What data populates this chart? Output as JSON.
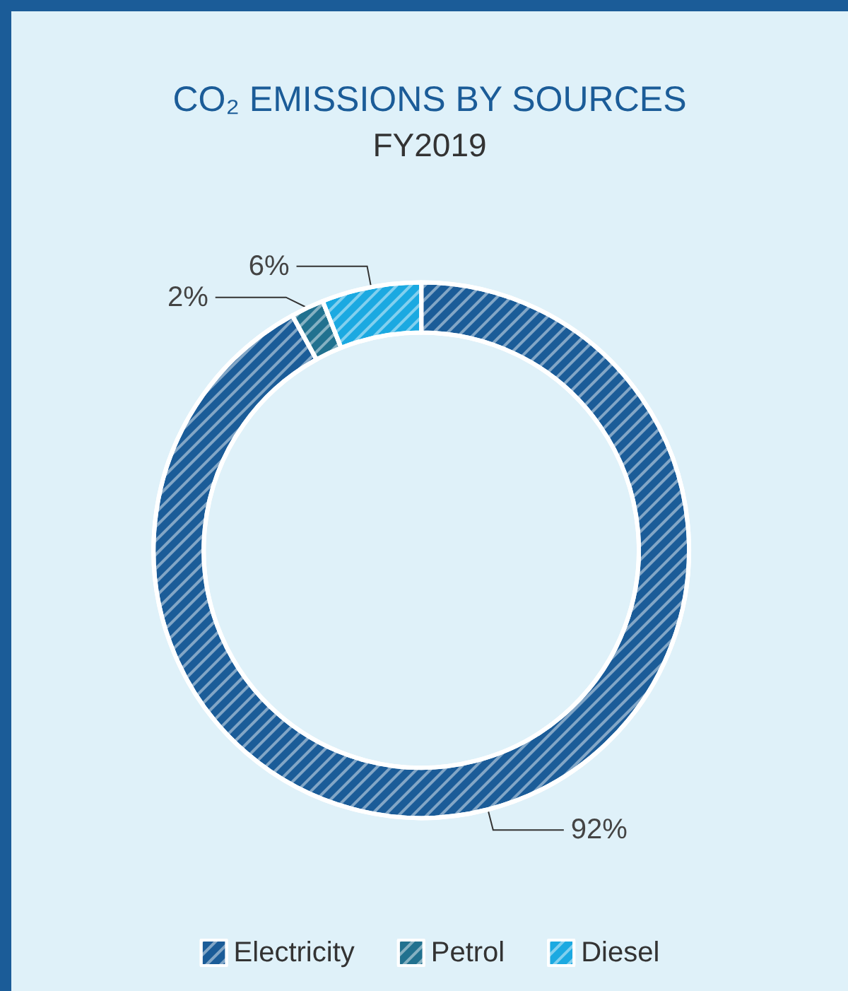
{
  "chart_data": {
    "type": "donut",
    "title": "CO₂ EMISSIONS BY SOURCES",
    "subtitle": "FY2019",
    "categories": [
      "Electricity",
      "Petrol",
      "Diesel"
    ],
    "values": [
      92,
      2,
      6
    ],
    "colors": [
      "#1b5c98",
      "#21718f",
      "#1ba9e1"
    ],
    "value_labels": [
      "92%",
      "2%",
      "6%"
    ],
    "legend": "bottom"
  }
}
